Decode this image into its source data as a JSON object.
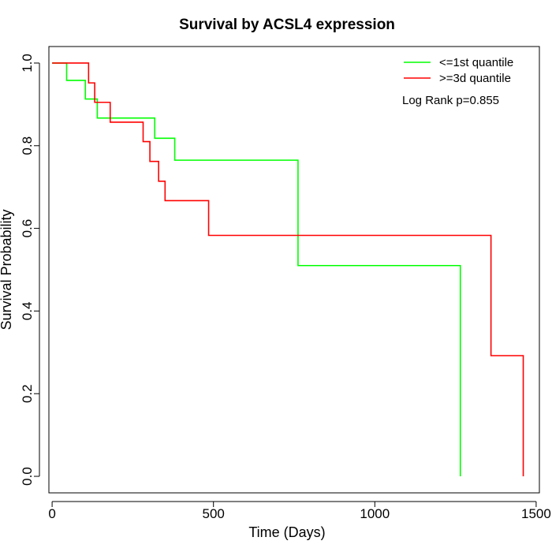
{
  "chart_data": {
    "type": "line",
    "title": "Survival by ACSL4 expression",
    "xlabel": "Time (Days)",
    "ylabel": "Survival Probability",
    "xlim": [
      -10,
      1510
    ],
    "ylim": [
      -0.04,
      1.04
    ],
    "x_ticks": [
      0,
      500,
      1000,
      1500
    ],
    "y_ticks": [
      0.0,
      0.2,
      0.4,
      0.6,
      0.8,
      1.0
    ],
    "x_tick_labels": [
      "0",
      "500",
      "1000",
      "1500"
    ],
    "y_tick_labels": [
      "0.0",
      "0.2",
      "0.4",
      "0.6",
      "0.8",
      "1.0"
    ],
    "grid": false,
    "legend_position": "top-right",
    "annotation": "Log Rank p=0.855",
    "series": [
      {
        "name": "<=1st quantile",
        "color": "#00ff00",
        "step": "post",
        "points": [
          [
            0,
            1.0
          ],
          [
            45,
            0.958
          ],
          [
            103,
            0.913
          ],
          [
            140,
            0.867
          ],
          [
            318,
            0.818
          ],
          [
            380,
            0.765
          ],
          [
            762,
            0.51
          ],
          [
            1265,
            0.0
          ]
        ]
      },
      {
        "name": ">=3d quantile",
        "color": "#ff0000",
        "step": "post",
        "points": [
          [
            0,
            1.0
          ],
          [
            113,
            0.952
          ],
          [
            132,
            0.905
          ],
          [
            180,
            0.857
          ],
          [
            282,
            0.81
          ],
          [
            303,
            0.762
          ],
          [
            330,
            0.714
          ],
          [
            350,
            0.667
          ],
          [
            485,
            0.583
          ],
          [
            1360,
            0.292
          ],
          [
            1460,
            0.0
          ]
        ]
      }
    ]
  }
}
